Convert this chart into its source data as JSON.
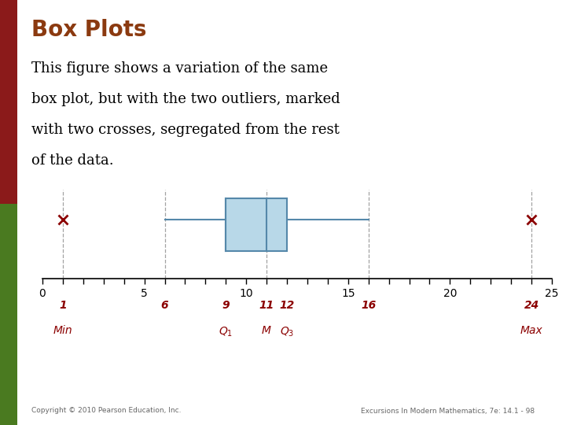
{
  "title": "Box Plots",
  "title_color": "#8B3A10",
  "body_text_line1": "This figure shows a variation of the same",
  "body_text_line2": "box plot, but with the two outliers, marked",
  "body_text_line3": "with two crosses, segregated from the rest",
  "body_text_line4": "of the data.",
  "body_text_color": "#000000",
  "q1": 9,
  "median": 11,
  "q3": 12,
  "whisker_low": 6,
  "whisker_high": 16,
  "outlier_low": 1,
  "outlier_high": 24,
  "box_facecolor": "#b8d8e8",
  "box_edgecolor": "#5588aa",
  "whisker_color": "#5588aa",
  "cross_color": "#8B0000",
  "dashed_color": "#999999",
  "axis_min": 0,
  "axis_max": 25,
  "major_ticks": [
    0,
    5,
    10,
    15,
    20,
    25
  ],
  "label_values": [
    1,
    6,
    9,
    11,
    12,
    16,
    24
  ],
  "label_texts": [
    "1",
    "6",
    "9",
    "11",
    "12",
    "16",
    "24"
  ],
  "label_sublabels": [
    "Min",
    "",
    "Q1",
    "M",
    "Q3",
    "",
    "Max"
  ],
  "label_color": "#8B0000",
  "sidebar_top_color": "#8B1A1A",
  "sidebar_bottom_color": "#4A7A20",
  "footer_left": "Copyright © 2010 Pearson Education, Inc.",
  "footer_right": "Excursions In Modern Mathematics, 7e: 14.1 - 98",
  "footer_color": "#666666",
  "sidebar_split": 0.52
}
